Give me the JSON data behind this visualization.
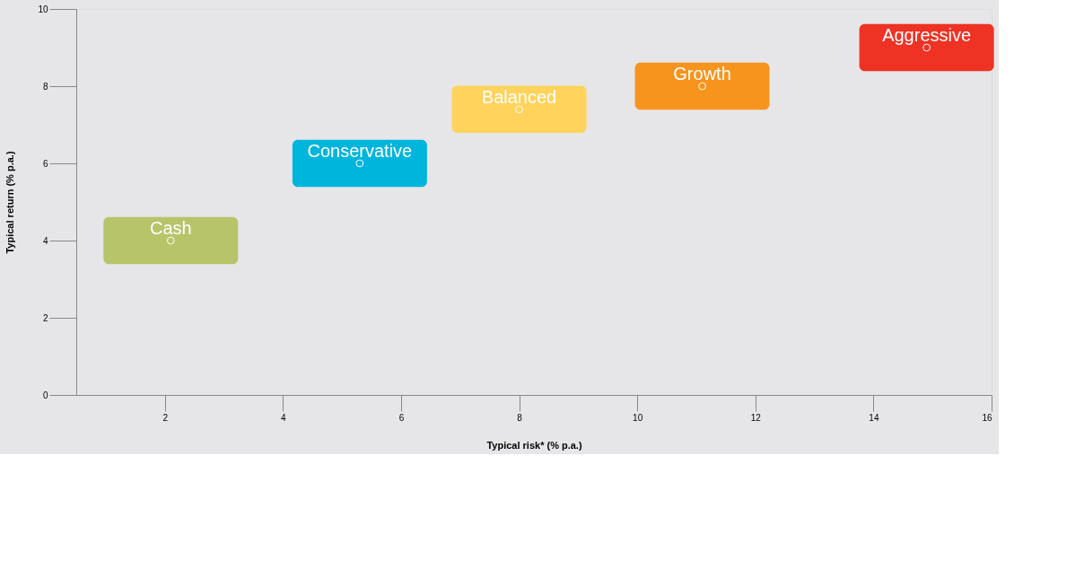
{
  "chart_data": {
    "type": "scatter",
    "xlabel": "Typical risk* (% p.a.)",
    "ylabel": "Typical return (% p.a.)",
    "xlim": [
      0.5,
      16
    ],
    "xticks": [
      2,
      4,
      6,
      8,
      10,
      12,
      14,
      16
    ],
    "ylim": [
      0,
      10
    ],
    "yticks": [
      0,
      2,
      4,
      6,
      8,
      10
    ],
    "grid": false,
    "legend": false,
    "series": [
      {
        "name": "Cash",
        "color": "#b8c46a",
        "x": [
          2.1
        ],
        "values": [
          4.0
        ]
      },
      {
        "name": "Conservative",
        "color": "#00b5dc",
        "x": [
          5.3
        ],
        "values": [
          6.0
        ]
      },
      {
        "name": "Balanced",
        "color": "#ffd35c",
        "x": [
          8.0
        ],
        "values": [
          7.4
        ]
      },
      {
        "name": "Growth",
        "color": "#f7941d",
        "x": [
          11.1
        ],
        "values": [
          8.0
        ]
      },
      {
        "name": "Aggressive",
        "color": "#ee3224",
        "x": [
          14.9
        ],
        "values": [
          9.0
        ]
      }
    ]
  }
}
